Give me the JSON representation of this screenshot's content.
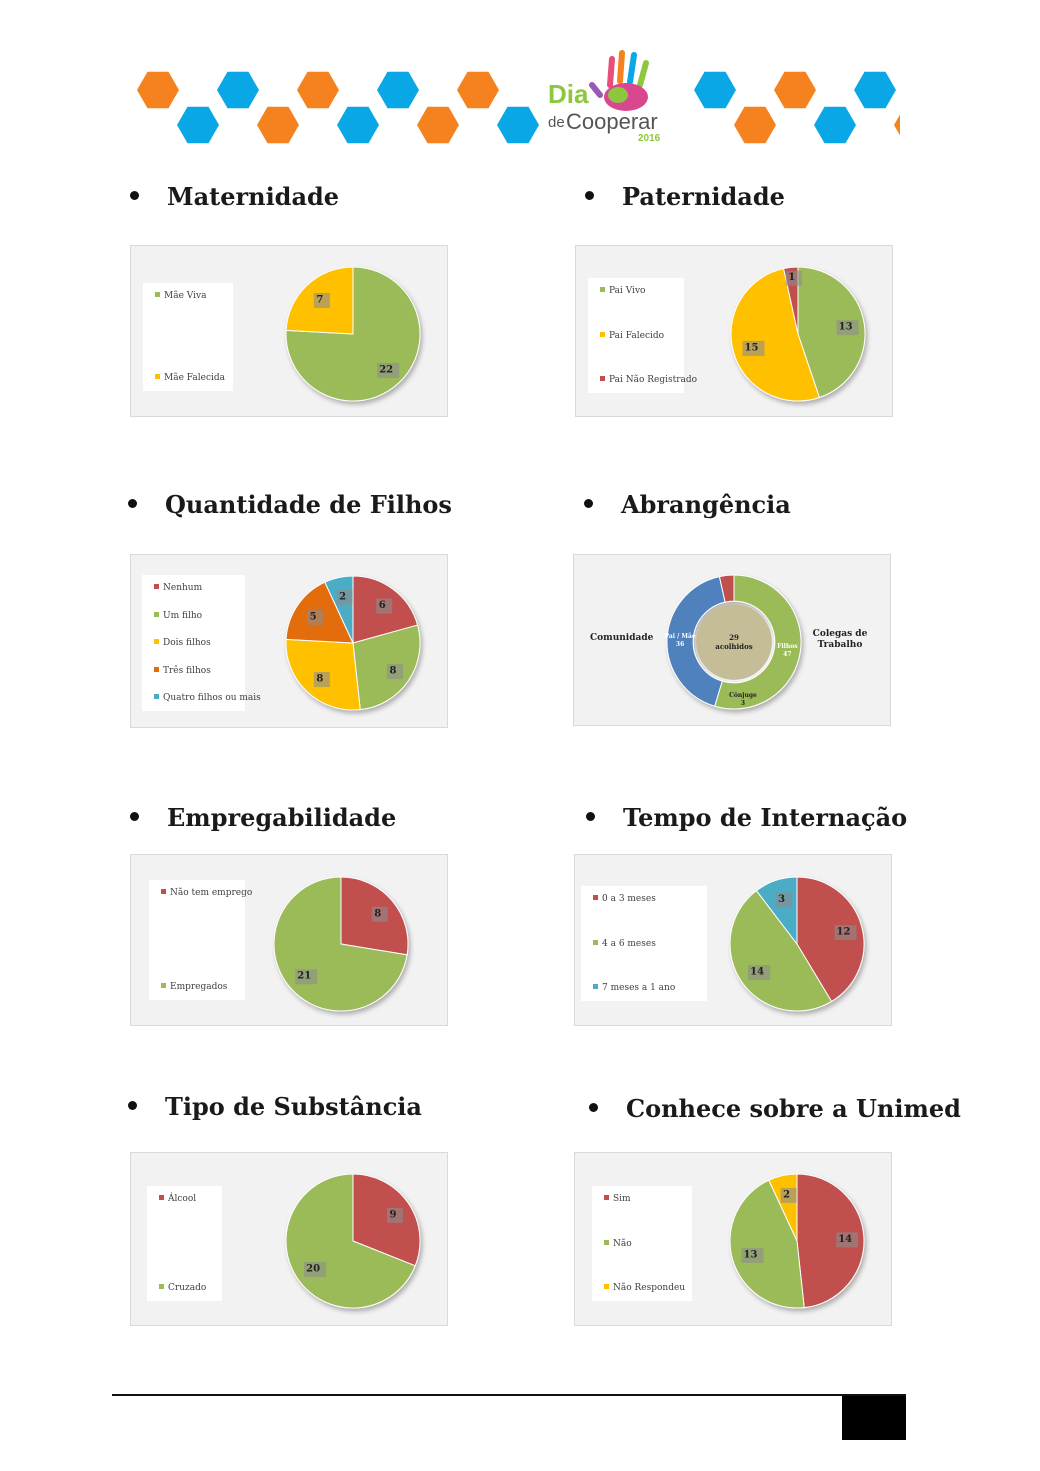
{
  "banner": {
    "word_dia": "Dia",
    "word_de": "de",
    "word_cooperar": "Cooperar",
    "year": "2016",
    "colors": {
      "orange": "#f5821f",
      "blue": "#0aa7e6",
      "green": "#8dc63f"
    }
  },
  "charts": [
    {
      "id": "maternidade",
      "heading": "Maternidade",
      "chart_data": {
        "type": "pie",
        "title": "",
        "labels": [
          "Mãe Viva",
          "Mãe Falecida"
        ],
        "values": [
          22,
          7
        ],
        "colors": [
          "#9bbb59",
          "#ffc000"
        ],
        "legend": "left"
      }
    },
    {
      "id": "paternidade",
      "heading": "Paternidade",
      "chart_data": {
        "type": "pie",
        "title": "",
        "labels": [
          "Pai Vivo",
          "Pai Falecido",
          "Pai Não Registrado"
        ],
        "values": [
          13,
          15,
          1
        ],
        "colors": [
          "#9bbb59",
          "#ffc000",
          "#c0504d"
        ],
        "legend": "left"
      }
    },
    {
      "id": "filhos",
      "heading": "Quantidade de Filhos",
      "chart_data": {
        "type": "pie",
        "title": "",
        "labels": [
          "Nenhum",
          "Um filho",
          "Dois filhos",
          "Três filhos",
          "Quatro filhos ou mais"
        ],
        "values": [
          6,
          8,
          8,
          5,
          2
        ],
        "colors": [
          "#c0504d",
          "#9bbb59",
          "#ffc000",
          "#e36c09",
          "#4bacc6"
        ],
        "legend": "left"
      }
    },
    {
      "id": "abrangencia",
      "heading": "Abrangência",
      "chart_data": {
        "type": "pie",
        "title": "",
        "center": {
          "value": "29",
          "label": "acolhidos"
        },
        "labels": [
          "Filhos",
          "Pai / Mãe",
          "Cônjuge"
        ],
        "values": [
          47,
          36,
          3
        ],
        "colors": [
          "#9bbb59",
          "#4f81bd",
          "#c0504d"
        ],
        "side_labels": {
          "left": "Comunidade",
          "right_line1": "Colegas de",
          "right_line2": "Trabalho"
        }
      }
    },
    {
      "id": "empregabilidade",
      "heading": "Empregabilidade",
      "chart_data": {
        "type": "pie",
        "title": "",
        "labels": [
          "Não tem emprego",
          "Empregados"
        ],
        "values": [
          8,
          21
        ],
        "colors": [
          "#c0504d",
          "#9bbb59"
        ],
        "legend": "left"
      }
    },
    {
      "id": "internacao",
      "heading": "Tempo de Internação",
      "chart_data": {
        "type": "pie",
        "title": "",
        "labels": [
          "0 a 3 meses",
          "4 a 6 meses",
          "7 meses a 1 ano"
        ],
        "values": [
          12,
          14,
          3
        ],
        "colors": [
          "#c0504d",
          "#9bbb59",
          "#4bacc6"
        ],
        "legend": "left"
      }
    },
    {
      "id": "substancia",
      "heading": "Tipo de Substância",
      "chart_data": {
        "type": "pie",
        "title": "",
        "labels": [
          "Álcool",
          "Cruzado"
        ],
        "values": [
          9,
          20
        ],
        "colors": [
          "#c0504d",
          "#9bbb59"
        ],
        "legend": "left"
      }
    },
    {
      "id": "unimed",
      "heading": "Conhece sobre a Unimed",
      "chart_data": {
        "type": "pie",
        "title": "",
        "labels": [
          "Sim",
          "Não",
          "Não Respondeu"
        ],
        "values": [
          14,
          13,
          2
        ],
        "colors": [
          "#c0504d",
          "#9bbb59",
          "#ffc000"
        ],
        "legend": "left"
      }
    }
  ]
}
